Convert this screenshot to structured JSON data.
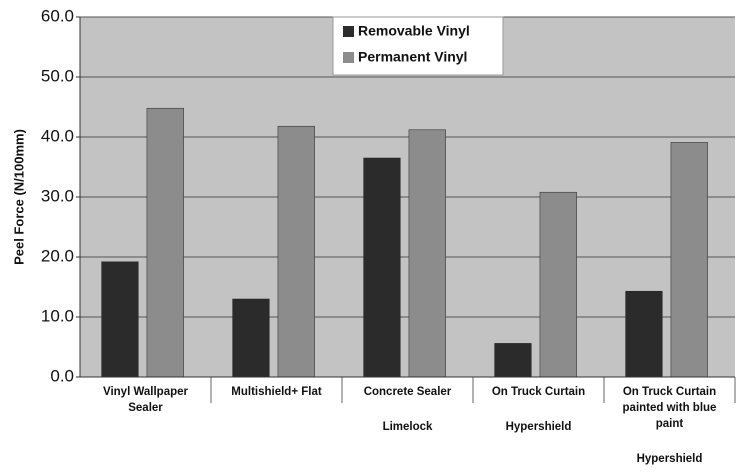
{
  "chart_data": {
    "type": "bar",
    "y_label": "Peel Force (N/100mm)",
    "categories": [
      "Vinyl Wallpaper Sealer",
      "Multishield+ Flat",
      "Concrete Sealer",
      "On Truck Curtain",
      "On Truck Curtain painted with blue paint"
    ],
    "subcategories": [
      null,
      null,
      "Limelock",
      "Hypershield",
      "Hypershield"
    ],
    "series": [
      {
        "name": "Removable Vinyl",
        "color": "#2b2b2b",
        "values": [
          19.2,
          13.0,
          36.5,
          5.6,
          14.3
        ]
      },
      {
        "name": "Permanent Vinyl",
        "color": "#8c8c8c",
        "values": [
          44.8,
          41.8,
          41.2,
          30.8,
          39.1
        ]
      }
    ],
    "ylim": [
      0,
      60
    ],
    "yticks": [
      {
        "value": 0,
        "label": "0.0"
      },
      {
        "value": 10,
        "label": "10.0"
      },
      {
        "value": 20,
        "label": "20.0"
      },
      {
        "value": 30,
        "label": "30.0"
      },
      {
        "value": 40,
        "label": "40.0"
      },
      {
        "value": 50,
        "label": "50.0"
      },
      {
        "value": 60,
        "label": "60.0"
      }
    ],
    "grid": true,
    "legend": "top"
  }
}
